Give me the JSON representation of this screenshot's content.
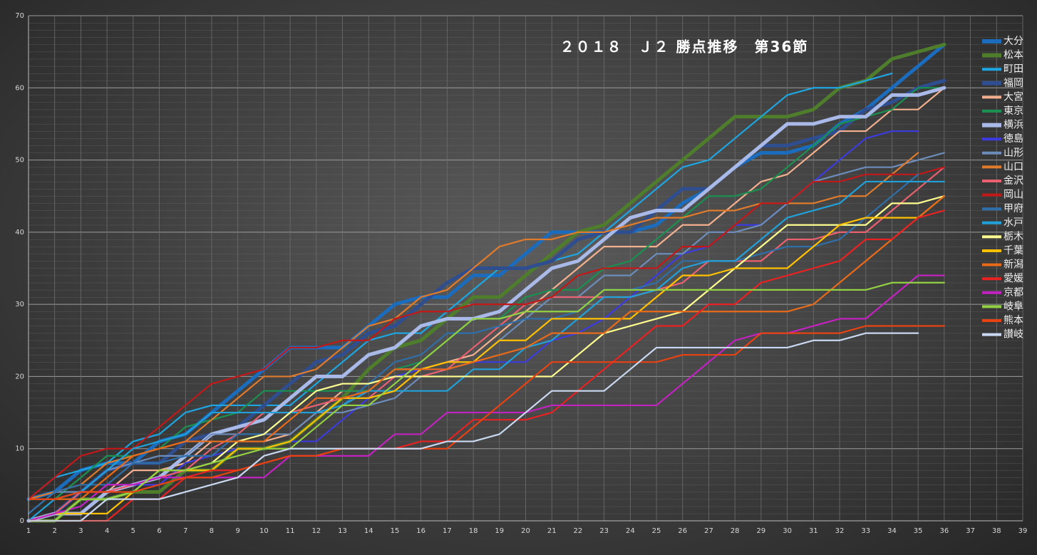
{
  "chart_data": {
    "type": "line",
    "title": "２０１８　Ｊ２ 勝点推移　第36節",
    "x": [
      1,
      2,
      3,
      4,
      5,
      6,
      7,
      8,
      9,
      10,
      11,
      12,
      13,
      14,
      15,
      16,
      17,
      18,
      19,
      20,
      21,
      22,
      23,
      24,
      25,
      26,
      27,
      28,
      29,
      30,
      31,
      32,
      33,
      34,
      35,
      36
    ],
    "xlim": [
      1,
      39
    ],
    "xticks": [
      1,
      2,
      3,
      4,
      5,
      6,
      7,
      8,
      9,
      10,
      11,
      12,
      13,
      14,
      15,
      16,
      17,
      18,
      19,
      20,
      21,
      22,
      23,
      24,
      25,
      26,
      27,
      28,
      29,
      30,
      31,
      32,
      33,
      34,
      35,
      36,
      37,
      38,
      39
    ],
    "ylim": [
      0,
      70
    ],
    "yticks": [
      0,
      10,
      20,
      30,
      40,
      50,
      60,
      70
    ],
    "grid": true,
    "series": [
      {
        "name": "大分",
        "color": "#1c6cbd",
        "values": [
          3,
          4,
          7,
          8,
          8,
          11,
          12,
          15,
          18,
          21,
          24,
          24,
          24,
          27,
          30,
          31,
          31,
          34,
          34,
          37,
          40,
          40,
          40,
          40,
          41,
          44,
          46,
          49,
          51,
          51,
          52,
          55,
          57,
          60,
          63,
          66
        ]
      },
      {
        "name": "松本",
        "color": "#4e7d2c",
        "values": [
          0,
          0,
          3,
          3,
          4,
          4,
          7,
          7,
          10,
          10,
          11,
          14,
          17,
          21,
          24,
          25,
          28,
          31,
          31,
          34,
          37,
          40,
          41,
          44,
          47,
          50,
          53,
          56,
          56,
          56,
          57,
          60,
          61,
          64,
          65,
          66
        ]
      },
      {
        "name": "町田",
        "color": "#1ea6e2",
        "values": [
          3,
          6,
          7,
          8,
          11,
          12,
          15,
          16,
          16,
          16,
          16,
          19,
          22,
          25,
          26,
          26,
          29,
          32,
          35,
          35,
          36,
          37,
          40,
          43,
          46,
          49,
          50,
          53,
          56,
          59,
          60,
          60,
          61,
          62,
          null,
          null
        ]
      },
      {
        "name": "福岡",
        "color": "#2e4e90",
        "values": [
          0,
          1,
          4,
          7,
          8,
          8,
          11,
          12,
          13,
          16,
          19,
          22,
          23,
          26,
          27,
          30,
          33,
          35,
          35,
          35,
          36,
          39,
          40,
          40,
          43,
          46,
          46,
          49,
          52,
          52,
          53,
          54,
          57,
          58,
          60,
          61
        ]
      },
      {
        "name": "大宮",
        "color": "#f2b08e",
        "values": [
          3,
          3,
          4,
          4,
          7,
          7,
          8,
          11,
          11,
          11,
          12,
          15,
          18,
          18,
          21,
          21,
          22,
          23,
          26,
          29,
          32,
          35,
          38,
          38,
          38,
          41,
          41,
          44,
          47,
          48,
          51,
          54,
          54,
          57,
          57,
          60
        ]
      },
      {
        "name": "東京",
        "color": "#1a9150",
        "values": [
          3,
          3,
          6,
          9,
          9,
          10,
          13,
          14,
          15,
          18,
          18,
          18,
          18,
          18,
          21,
          22,
          25,
          28,
          28,
          31,
          32,
          32,
          35,
          36,
          39,
          42,
          45,
          45,
          46,
          49,
          52,
          55,
          56,
          57,
          60,
          60
        ]
      },
      {
        "name": "横浜",
        "color": "#a9b9e8",
        "values": [
          0,
          1,
          1,
          4,
          5,
          6,
          9,
          12,
          13,
          14,
          17,
          20,
          20,
          23,
          24,
          27,
          28,
          28,
          29,
          32,
          35,
          36,
          39,
          42,
          43,
          43,
          46,
          49,
          52,
          55,
          55,
          56,
          56,
          59,
          59,
          60
        ]
      },
      {
        "name": "徳島",
        "color": "#3b3be0",
        "values": [
          0,
          1,
          2,
          5,
          5,
          5,
          8,
          9,
          10,
          10,
          11,
          11,
          14,
          17,
          20,
          21,
          21,
          22,
          22,
          22,
          25,
          26,
          28,
          31,
          34,
          37,
          38,
          41,
          41,
          44,
          47,
          50,
          53,
          54,
          54,
          null
        ]
      },
      {
        "name": "山形",
        "color": "#6c8cba",
        "values": [
          1,
          4,
          4,
          7,
          8,
          9,
          9,
          12,
          12,
          12,
          12,
          15,
          15,
          16,
          17,
          20,
          21,
          22,
          25,
          28,
          31,
          31,
          34,
          34,
          37,
          37,
          40,
          40,
          41,
          44,
          47,
          48,
          49,
          49,
          50,
          51
        ]
      },
      {
        "name": "山口",
        "color": "#e07b2c",
        "values": [
          3,
          4,
          5,
          8,
          9,
          10,
          11,
          14,
          17,
          20,
          20,
          21,
          24,
          27,
          28,
          31,
          32,
          35,
          38,
          39,
          39,
          40,
          40,
          41,
          42,
          42,
          43,
          43,
          44,
          44,
          44,
          45,
          45,
          48,
          51,
          null
        ]
      },
      {
        "name": "金沢",
        "color": "#e9606f",
        "values": [
          0,
          1,
          4,
          4,
          5,
          6,
          7,
          10,
          12,
          15,
          15,
          16,
          17,
          17,
          20,
          20,
          21,
          24,
          27,
          30,
          31,
          31,
          31,
          31,
          32,
          33,
          36,
          36,
          36,
          39,
          39,
          40,
          40,
          43,
          46,
          49
        ]
      },
      {
        "name": "岡山",
        "color": "#c21818",
        "values": [
          3,
          6,
          9,
          10,
          10,
          13,
          16,
          19,
          20,
          21,
          24,
          24,
          25,
          25,
          28,
          29,
          29,
          30,
          30,
          30,
          31,
          34,
          35,
          35,
          35,
          38,
          38,
          41,
          44,
          44,
          47,
          47,
          48,
          48,
          48,
          49
        ]
      },
      {
        "name": "甲府",
        "color": "#2f6fa9",
        "values": [
          1,
          4,
          5,
          5,
          8,
          8,
          9,
          9,
          12,
          12,
          15,
          15,
          16,
          19,
          22,
          23,
          26,
          26,
          27,
          28,
          28,
          29,
          32,
          32,
          33,
          36,
          36,
          36,
          37,
          38,
          38,
          39,
          42,
          45,
          48,
          null
        ]
      },
      {
        "name": "水戸",
        "color": "#21a1d9",
        "values": [
          0,
          3,
          4,
          7,
          10,
          11,
          12,
          15,
          15,
          15,
          15,
          15,
          16,
          18,
          18,
          18,
          18,
          21,
          21,
          24,
          25,
          28,
          31,
          31,
          32,
          35,
          36,
          36,
          39,
          42,
          43,
          44,
          47,
          47,
          47,
          47
        ]
      },
      {
        "name": "栃木",
        "color": "#ffff8f",
        "values": [
          0,
          0,
          3,
          3,
          4,
          7,
          7,
          8,
          11,
          12,
          15,
          18,
          19,
          19,
          20,
          20,
          20,
          20,
          20,
          20,
          20,
          23,
          26,
          27,
          28,
          29,
          32,
          35,
          38,
          41,
          41,
          41,
          41,
          44,
          44,
          45
        ]
      },
      {
        "name": "千葉",
        "color": "#ffc000",
        "values": [
          0,
          1,
          1,
          1,
          4,
          7,
          7,
          7,
          10,
          10,
          11,
          14,
          17,
          17,
          18,
          21,
          22,
          22,
          25,
          25,
          28,
          28,
          28,
          28,
          31,
          34,
          34,
          35,
          35,
          35,
          38,
          41,
          42,
          42,
          42,
          45
        ]
      },
      {
        "name": "新潟",
        "color": "#e86b1a",
        "values": [
          3,
          3,
          3,
          6,
          9,
          10,
          11,
          11,
          11,
          11,
          14,
          17,
          17,
          18,
          21,
          21,
          21,
          22,
          23,
          24,
          26,
          26,
          26,
          29,
          29,
          29,
          29,
          29,
          29,
          29,
          30,
          33,
          36,
          39,
          42,
          45
        ]
      },
      {
        "name": "愛媛",
        "color": "#e82222",
        "values": [
          0,
          0,
          0,
          0,
          3,
          3,
          6,
          7,
          7,
          8,
          9,
          9,
          10,
          10,
          10,
          11,
          11,
          14,
          14,
          14,
          15,
          18,
          21,
          24,
          27,
          27,
          30,
          30,
          33,
          34,
          35,
          36,
          39,
          39,
          42,
          43
        ]
      },
      {
        "name": "京都",
        "color": "#c222c0",
        "values": [
          0,
          1,
          2,
          5,
          5,
          6,
          6,
          6,
          6,
          6,
          9,
          9,
          9,
          9,
          12,
          12,
          15,
          15,
          15,
          15,
          16,
          16,
          16,
          16,
          16,
          19,
          22,
          25,
          26,
          26,
          27,
          28,
          28,
          31,
          34,
          34
        ]
      },
      {
        "name": "岐阜",
        "color": "#92d142",
        "values": [
          0,
          0,
          3,
          3,
          4,
          7,
          7,
          8,
          9,
          10,
          10,
          13,
          16,
          16,
          19,
          22,
          25,
          28,
          28,
          29,
          29,
          29,
          32,
          32,
          32,
          32,
          32,
          32,
          32,
          32,
          32,
          32,
          32,
          33,
          33,
          33
        ]
      },
      {
        "name": "熊本",
        "color": "#e84212",
        "values": [
          3,
          3,
          4,
          4,
          4,
          5,
          6,
          6,
          7,
          8,
          9,
          9,
          10,
          10,
          10,
          10,
          10,
          13,
          16,
          19,
          22,
          22,
          22,
          22,
          22,
          23,
          23,
          23,
          26,
          26,
          26,
          26,
          27,
          27,
          27,
          27
        ]
      },
      {
        "name": "讃岐",
        "color": "#c9d9f1",
        "values": [
          0,
          0,
          0,
          3,
          3,
          3,
          4,
          5,
          6,
          9,
          10,
          10,
          10,
          10,
          10,
          10,
          11,
          11,
          12,
          15,
          18,
          18,
          18,
          21,
          24,
          24,
          24,
          24,
          24,
          24,
          25,
          25,
          26,
          26,
          26,
          null
        ]
      }
    ]
  }
}
